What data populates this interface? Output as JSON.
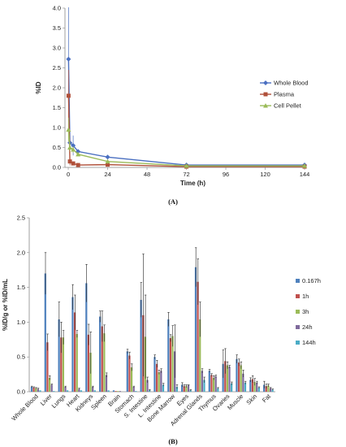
{
  "chart_data": [
    {
      "panel_label": "(A)",
      "type": "line",
      "xlabel": "Time (h)",
      "ylabel": "%ID",
      "xlim": [
        -2,
        144
      ],
      "ylim": [
        0,
        4.0
      ],
      "x_ticks": [
        0,
        24,
        48,
        72,
        96,
        120,
        144
      ],
      "y_ticks": [
        "0.0",
        "0.5",
        "1.0",
        "1.5",
        "2.0",
        "2.5",
        "3.0",
        "3.5",
        "4.0"
      ],
      "legend_position": "right",
      "series": [
        {
          "name": "Whole Blood",
          "color": "#4a6fc1",
          "marker": "diamond",
          "x": [
            0.167,
            1,
            3,
            6,
            24,
            72,
            144
          ],
          "y": [
            2.72,
            0.62,
            0.55,
            0.4,
            0.26,
            0.06,
            0.06
          ],
          "err": [
            1.3,
            0.3,
            0.25,
            0.05,
            0.04,
            0.01,
            0.01
          ]
        },
        {
          "name": "Plasma",
          "color": "#b0503a",
          "marker": "square",
          "x": [
            0.167,
            1,
            3,
            6,
            24,
            72,
            144
          ],
          "y": [
            1.8,
            0.15,
            0.1,
            0.06,
            0.07,
            0.02,
            0.02
          ],
          "err": [
            0.65,
            0.1,
            0.05,
            0.02,
            0.02,
            0.01,
            0.01
          ]
        },
        {
          "name": "Cell Pellet",
          "color": "#9bbb59",
          "marker": "triangle",
          "x": [
            0.167,
            1,
            3,
            6,
            24,
            72,
            144
          ],
          "y": [
            0.95,
            0.5,
            0.45,
            0.33,
            0.15,
            0.04,
            0.04
          ],
          "err": [
            0.3,
            0.1,
            0.08,
            0.05,
            0.02,
            0.01,
            0.01
          ]
        }
      ]
    },
    {
      "panel_label": "(B)",
      "type": "bar",
      "ylabel": "%ID/g or %ID/mL",
      "ylim": [
        0,
        2.5
      ],
      "y_ticks": [
        "0.0",
        "0.5",
        "1.0",
        "1.5",
        "2.0",
        "2.5"
      ],
      "legend_position": "right",
      "categories": [
        "Whole Blood",
        "Liver",
        "Lungs",
        "Heart",
        "Kidneys",
        "Spleen",
        "Brain",
        "Stomach",
        "S. Intestine",
        "L. Intestine",
        "Bone Marrow",
        "Eyes",
        "Adrenal Glands",
        "Thymus",
        "Ovaries",
        "Muscle",
        "Skin",
        "Fat"
      ],
      "series": [
        {
          "name": "0.167h",
          "color": "#4f81bd",
          "values": [
            0.07,
            1.7,
            1.04,
            1.36,
            1.56,
            1.08,
            0.02,
            0.58,
            1.32,
            0.5,
            1.04,
            0.1,
            1.79,
            0.3,
            0.4,
            0.47,
            0.17,
            0.1
          ],
          "err": [
            0.01,
            0.3,
            0.25,
            0.18,
            0.27,
            0.08,
            0.0,
            0.03,
            0.25,
            0.03,
            0.1,
            0.03,
            0.28,
            0.02,
            0.2,
            0.06,
            0.03,
            0.05
          ]
        },
        {
          "name": "1h",
          "color": "#c0504d",
          "values": [
            0.06,
            0.71,
            0.78,
            1.14,
            0.82,
            0.94,
            0.01,
            0.52,
            1.1,
            0.4,
            0.77,
            0.08,
            1.58,
            0.24,
            0.44,
            0.42,
            0.18,
            0.08
          ],
          "err": [
            0.01,
            0.12,
            0.22,
            0.25,
            0.15,
            0.22,
            0.0,
            0.05,
            0.88,
            0.05,
            0.05,
            0.02,
            0.33,
            0.02,
            0.18,
            0.05,
            0.05,
            0.03
          ]
        },
        {
          "name": "3h",
          "color": "#9bbb59",
          "values": [
            0.05,
            0.2,
            0.78,
            0.83,
            0.56,
            0.84,
            0.01,
            0.35,
            0.79,
            0.28,
            0.8,
            0.08,
            1.04,
            0.2,
            0.38,
            0.38,
            0.14,
            0.09
          ],
          "err": [
            0.01,
            0.03,
            0.1,
            0.05,
            0.3,
            0.12,
            0.0,
            0.05,
            0.6,
            0.03,
            0.15,
            0.02,
            0.25,
            0.03,
            0.05,
            0.05,
            0.05,
            0.02
          ]
        },
        {
          "name": "24h",
          "color": "#7f6a9c",
          "values": [
            0.04,
            0.1,
            0.07,
            0.04,
            0.07,
            0.24,
            0.01,
            0.07,
            0.17,
            0.3,
            0.58,
            0.09,
            0.3,
            0.22,
            0.36,
            0.26,
            0.13,
            0.05
          ],
          "err": [
            0.01,
            0.01,
            0.01,
            0.01,
            0.01,
            0.03,
            0.0,
            0.01,
            0.04,
            0.03,
            0.38,
            0.01,
            0.03,
            0.02,
            0.02,
            0.05,
            0.02,
            0.01
          ]
        },
        {
          "name": "144h",
          "color": "#4bacc6",
          "values": [
            0.02,
            0.01,
            0.02,
            0.02,
            0.02,
            0.02,
            0.0,
            0.01,
            0.02,
            0.1,
            0.07,
            0.02,
            0.17,
            0.05,
            0.12,
            0.13,
            0.06,
            0.03
          ],
          "err": [
            0.0,
            0.0,
            0.0,
            0.0,
            0.0,
            0.0,
            0.0,
            0.0,
            0.01,
            0.02,
            0.03,
            0.01,
            0.04,
            0.01,
            0.02,
            0.02,
            0.01,
            0.01
          ]
        }
      ]
    }
  ]
}
